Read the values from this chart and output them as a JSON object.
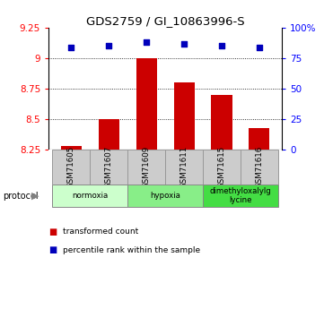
{
  "title": "GDS2759 / GI_10863996-S",
  "samples": [
    "GSM71605",
    "GSM71607",
    "GSM71609",
    "GSM71611",
    "GSM71615",
    "GSM71616"
  ],
  "transformed_counts": [
    8.28,
    8.5,
    9.0,
    8.8,
    8.7,
    8.43
  ],
  "percentile_ranks": [
    84,
    85,
    88,
    87,
    85,
    84
  ],
  "ylim_left": [
    8.25,
    9.25
  ],
  "ylim_right": [
    0,
    100
  ],
  "yticks_left": [
    8.25,
    8.5,
    8.75,
    9.0,
    9.25
  ],
  "ytick_labels_left": [
    "8.25",
    "8.5",
    "8.75",
    "9",
    "9.25"
  ],
  "yticks_right": [
    0,
    25,
    50,
    75,
    100
  ],
  "ytick_labels_right": [
    "0",
    "25",
    "50",
    "75",
    "100%"
  ],
  "dotted_lines": [
    8.5,
    8.75,
    9.0
  ],
  "protocols": [
    {
      "label": "normoxia",
      "start": 0,
      "end": 1,
      "color": "#ccffcc"
    },
    {
      "label": "hypoxia",
      "start": 2,
      "end": 3,
      "color": "#88ee88"
    },
    {
      "label": "dimethyloxalylg\nlycine",
      "start": 4,
      "end": 5,
      "color": "#44dd44"
    }
  ],
  "bar_color": "#cc0000",
  "dot_color": "#0000bb",
  "bar_width": 0.55,
  "background_color": "#ffffff",
  "label_box_color": "#cccccc",
  "label_box_edge": "#999999",
  "proto_edge": "#888888",
  "legend": [
    {
      "label": "transformed count",
      "color": "#cc0000"
    },
    {
      "label": "percentile rank within the sample",
      "color": "#0000bb"
    }
  ],
  "figsize": [
    3.61,
    3.45
  ],
  "dpi": 100
}
